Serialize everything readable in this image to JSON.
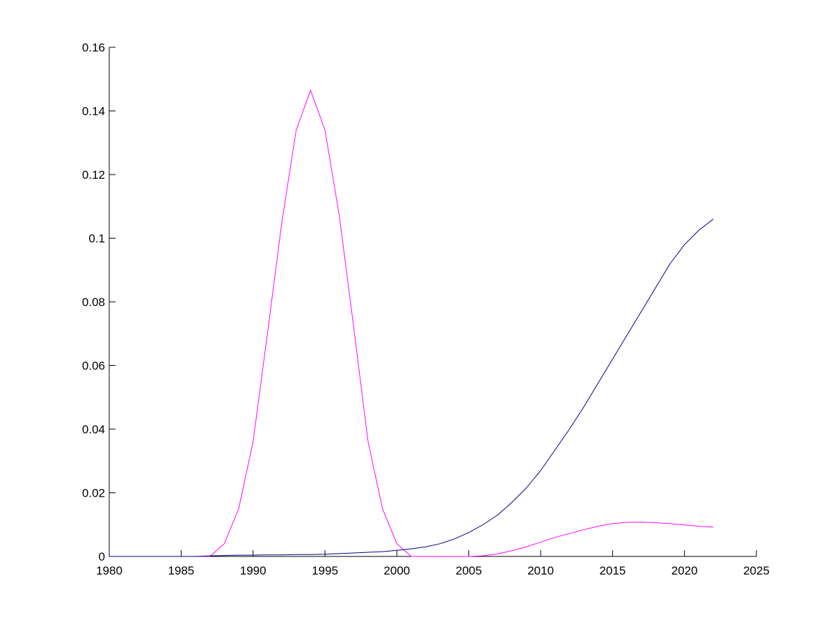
{
  "chart_data": {
    "type": "line",
    "x": [
      1980,
      1981,
      1982,
      1983,
      1984,
      1985,
      1986,
      1987,
      1988,
      1989,
      1990,
      1991,
      1992,
      1993,
      1994,
      1995,
      1996,
      1997,
      1998,
      1999,
      2000,
      2001,
      2002,
      2003,
      2004,
      2005,
      2006,
      2007,
      2008,
      2009,
      2010,
      2011,
      2012,
      2013,
      2014,
      2015,
      2016,
      2017,
      2018,
      2019,
      2020,
      2021,
      2022
    ],
    "series": [
      {
        "color": "#ff00ff",
        "values": [
          0,
          0,
          0,
          0,
          0,
          0,
          0,
          0,
          0.004,
          0.015,
          0.036,
          0.07,
          0.105,
          0.134,
          0.1465,
          0.134,
          0.107,
          0.072,
          0.036,
          0.015,
          0.004,
          0,
          0,
          0,
          0,
          0,
          0.0002,
          0.0008,
          0.0018,
          0.003,
          0.0045,
          0.006,
          0.0072,
          0.0084,
          0.0095,
          0.0103,
          0.0107,
          0.0108,
          0.0106,
          0.0103,
          0.0099,
          0.0095,
          0.0092
        ]
      },
      {
        "color": "#000080",
        "values": [
          0,
          0,
          0,
          0,
          0,
          0,
          0,
          0.0002,
          0.0003,
          0.0004,
          0.0004,
          0.0005,
          0.0005,
          0.0006,
          0.0006,
          0.0007,
          0.0009,
          0.0011,
          0.0013,
          0.0015,
          0.0019,
          0.0024,
          0.003,
          0.004,
          0.0055,
          0.0075,
          0.01,
          0.013,
          0.017,
          0.0215,
          0.027,
          0.0335,
          0.04,
          0.047,
          0.0545,
          0.062,
          0.0695,
          0.077,
          0.0845,
          0.092,
          0.098,
          0.1025,
          0.106
        ]
      }
    ],
    "xlim": [
      1980,
      2025
    ],
    "xticks": [
      1980,
      1985,
      1990,
      1995,
      2000,
      2005,
      2010,
      2015,
      2020,
      2025
    ],
    "ylim": [
      0,
      0.16
    ],
    "yticks": [
      0,
      0.02,
      0.04,
      0.06,
      0.08,
      0.1,
      0.12,
      0.14,
      0.16
    ],
    "grid": false
  }
}
